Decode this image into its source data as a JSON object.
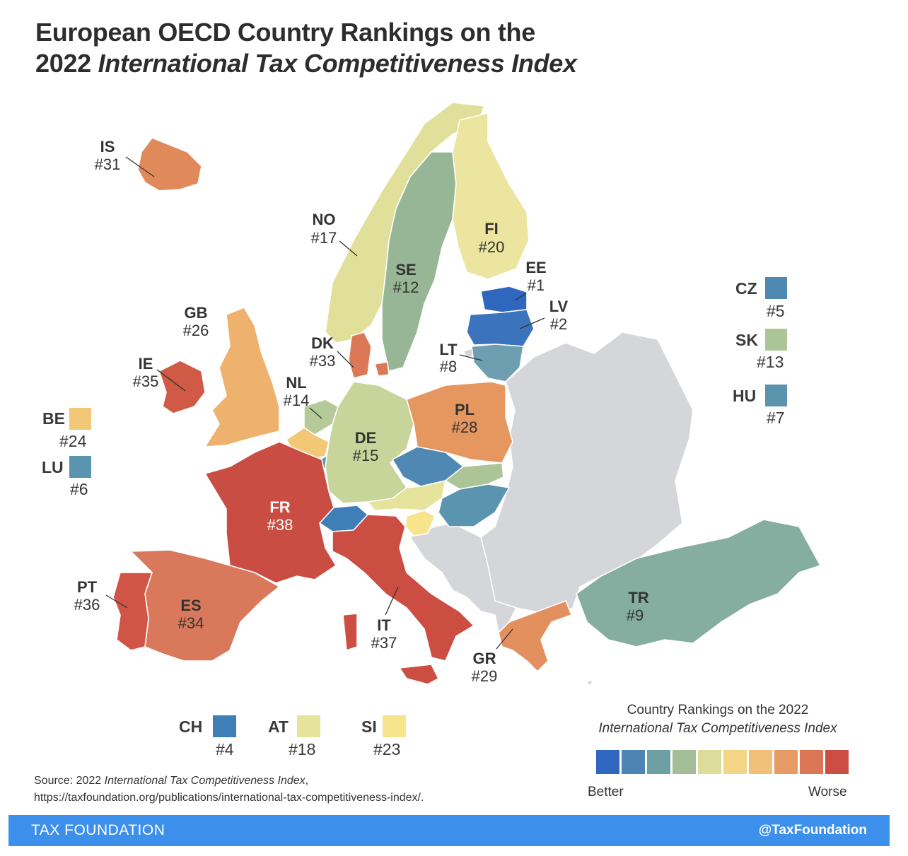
{
  "title": {
    "line1": "European OECD Country Rankings on the",
    "line2_prefix": "2022 ",
    "line2_italic": "International Tax Competitiveness Index"
  },
  "colors": {
    "rank_1": "#2e67bd",
    "rank_2_4": "#3f7fb8",
    "rank_5_8": "#5b94ae",
    "rank_9": "#86aea0",
    "rank_12": "#97b696",
    "rank_13_15": "#c1d19a",
    "rank_17_20": "#e8e39c",
    "rank_23": "#f6e58d",
    "rank_24": "#f2c876",
    "rank_26": "#eeb16e",
    "rank_28_31": "#e3905f",
    "rank_33_34": "#dc7856",
    "rank_35_38": "#ce4f45",
    "non_oecd": "#d5d6d9"
  },
  "countries": [
    {
      "code": "EE",
      "rank": "#1",
      "color": "#2e67bd"
    },
    {
      "code": "LV",
      "rank": "#2",
      "color": "#3b74bd"
    },
    {
      "code": "CH",
      "rank": "#4",
      "color": "#3f7fb8"
    },
    {
      "code": "CZ",
      "rank": "#5",
      "color": "#4f88b2"
    },
    {
      "code": "LU",
      "rank": "#6",
      "color": "#5b94ae"
    },
    {
      "code": "HU",
      "rank": "#7",
      "color": "#5b94ae"
    },
    {
      "code": "LT",
      "rank": "#8",
      "color": "#6e9fb0"
    },
    {
      "code": "TR",
      "rank": "#9",
      "color": "#86aea0"
    },
    {
      "code": "SE",
      "rank": "#12",
      "color": "#97b696"
    },
    {
      "code": "SK",
      "rank": "#13",
      "color": "#acc597"
    },
    {
      "code": "NL",
      "rank": "#14",
      "color": "#b5ca98"
    },
    {
      "code": "DE",
      "rank": "#15",
      "color": "#c7d49a"
    },
    {
      "code": "NO",
      "rank": "#17",
      "color": "#e1e09b"
    },
    {
      "code": "AT",
      "rank": "#18",
      "color": "#e6e39d"
    },
    {
      "code": "FI",
      "rank": "#20",
      "color": "#ebe5a0"
    },
    {
      "code": "SI",
      "rank": "#23",
      "color": "#f6e58d"
    },
    {
      "code": "BE",
      "rank": "#24",
      "color": "#f2c876"
    },
    {
      "code": "GB",
      "rank": "#26",
      "color": "#eeb16e"
    },
    {
      "code": "PL",
      "rank": "#28",
      "color": "#e6965f"
    },
    {
      "code": "GR",
      "rank": "#29",
      "color": "#e3905f"
    },
    {
      "code": "IS",
      "rank": "#31",
      "color": "#e08a5c"
    },
    {
      "code": "DK",
      "rank": "#33",
      "color": "#dc7856"
    },
    {
      "code": "ES",
      "rank": "#34",
      "color": "#d9785a"
    },
    {
      "code": "IE",
      "rank": "#35",
      "color": "#d15a47"
    },
    {
      "code": "PT",
      "rank": "#36",
      "color": "#d05546"
    },
    {
      "code": "IT",
      "rank": "#37",
      "color": "#cc4d42"
    },
    {
      "code": "FR",
      "rank": "#38",
      "color": "#c94d42"
    }
  ],
  "inset_labels": {
    "CZ": {
      "code": "CZ",
      "rank": "#5"
    },
    "SK": {
      "code": "SK",
      "rank": "#13"
    },
    "HU": {
      "code": "HU",
      "rank": "#7"
    },
    "BE": {
      "code": "BE",
      "rank": "#24"
    },
    "LU": {
      "code": "LU",
      "rank": "#6"
    },
    "CH": {
      "code": "CH",
      "rank": "#4"
    },
    "AT": {
      "code": "AT",
      "rank": "#18"
    },
    "SI": {
      "code": "SI",
      "rank": "#23"
    }
  },
  "legend": {
    "title_line1": "Country Rankings on the 2022",
    "title_line2": "International Tax Competitiveness Index",
    "scale": [
      "#2e67bd",
      "#4d84b3",
      "#6e9fa5",
      "#a3bd96",
      "#dcdc9b",
      "#f3d585",
      "#f0bf78",
      "#e69a64",
      "#dc7556",
      "#cd4d44"
    ],
    "low_label": "Better",
    "high_label": "Worse"
  },
  "source": {
    "prefix": "Source: 2022 ",
    "italic": "International Tax Competitiveness Index",
    "suffix": ",",
    "url": "https://taxfoundation.org/publications/international-tax-competitiveness-index/."
  },
  "footer": {
    "brand": "TAX FOUNDATION",
    "handle": "@TaxFoundation"
  }
}
